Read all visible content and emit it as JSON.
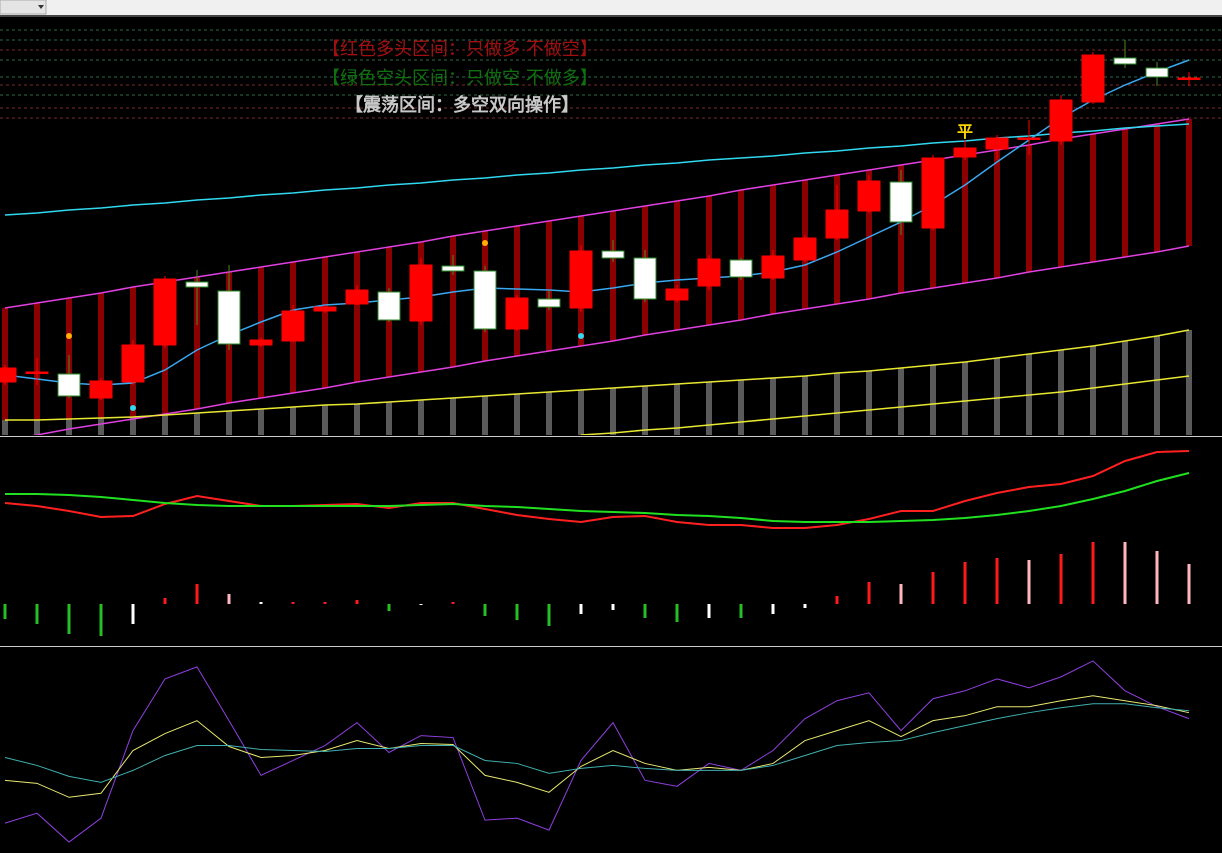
{
  "chart_data": {
    "type": "candlestick",
    "notes": [
      "【红色多头区间：只做多 不做空】",
      "【绿色空头区间：只做空 不做多】",
      "【震荡区间：多空双向操作】"
    ],
    "note_colors": [
      "#a01010",
      "#107010",
      "#c8c8c8"
    ],
    "ylim": [
      0,
      417
    ],
    "up_color": "#ff0000",
    "down_color": "#ffffff",
    "candles": [
      {
        "open": 53,
        "high": 70,
        "low": 50,
        "close": 67
      },
      {
        "open": 63,
        "high": 77,
        "low": 50,
        "close": 63
      },
      {
        "open": 61,
        "high": 80,
        "low": 37,
        "close": 39
      },
      {
        "open": 37,
        "high": 57,
        "low": 35,
        "close": 54
      },
      {
        "open": 53,
        "high": 95,
        "low": 50,
        "close": 90
      },
      {
        "open": 90,
        "high": 159,
        "low": 87,
        "close": 156
      },
      {
        "open": 153,
        "high": 165,
        "low": 110,
        "close": 148
      },
      {
        "open": 144,
        "high": 170,
        "low": 85,
        "close": 91
      },
      {
        "open": 90,
        "high": 97,
        "low": 88,
        "close": 95
      },
      {
        "open": 94,
        "high": 130,
        "low": 93,
        "close": 124
      },
      {
        "open": 124,
        "high": 130,
        "low": 122,
        "close": 128
      },
      {
        "open": 131,
        "high": 150,
        "low": 130,
        "close": 145
      },
      {
        "open": 143,
        "high": 147,
        "low": 113,
        "close": 115
      },
      {
        "open": 114,
        "high": 177,
        "low": 110,
        "close": 170
      },
      {
        "open": 169,
        "high": 180,
        "low": 160,
        "close": 164
      },
      {
        "open": 164,
        "high": 169,
        "low": 103,
        "close": 106
      },
      {
        "open": 106,
        "high": 140,
        "low": 104,
        "close": 137
      },
      {
        "open": 136,
        "high": 145,
        "low": 125,
        "close": 128
      },
      {
        "open": 127,
        "high": 190,
        "low": 123,
        "close": 184
      },
      {
        "open": 184,
        "high": 195,
        "low": 173,
        "close": 177
      },
      {
        "open": 177,
        "high": 185,
        "low": 133,
        "close": 136
      },
      {
        "open": 135,
        "high": 150,
        "low": 133,
        "close": 146
      },
      {
        "open": 149,
        "high": 180,
        "low": 145,
        "close": 176
      },
      {
        "open": 175,
        "high": 177,
        "low": 155,
        "close": 158
      },
      {
        "open": 157,
        "high": 185,
        "low": 155,
        "close": 179
      },
      {
        "open": 175,
        "high": 200,
        "low": 173,
        "close": 197
      },
      {
        "open": 197,
        "high": 250,
        "low": 195,
        "close": 225
      },
      {
        "open": 224,
        "high": 260,
        "low": 222,
        "close": 254
      },
      {
        "open": 253,
        "high": 265,
        "low": 200,
        "close": 213
      },
      {
        "open": 207,
        "high": 280,
        "low": 205,
        "close": 277
      },
      {
        "open": 278,
        "high": 295,
        "low": 275,
        "close": 287
      },
      {
        "open": 286,
        "high": 300,
        "low": 275,
        "close": 297
      },
      {
        "open": 297,
        "high": 315,
        "low": 280,
        "close": 297
      },
      {
        "open": 294,
        "high": 340,
        "low": 290,
        "close": 335
      },
      {
        "open": 333,
        "high": 383,
        "low": 331,
        "close": 380
      },
      {
        "open": 377,
        "high": 395,
        "low": 367,
        "close": 371
      },
      {
        "open": 367,
        "high": 373,
        "low": 349,
        "close": 358
      },
      {
        "open": 357,
        "high": 363,
        "low": 349,
        "close": 357
      }
    ],
    "levels": [
      {
        "value": 405,
        "color": "#2a6a4a"
      },
      {
        "value": 395,
        "color": "#2a6a4a"
      },
      {
        "value": 385,
        "color": "#7a2a2a"
      },
      {
        "value": 375,
        "color": "#2a6a4a"
      },
      {
        "value": 358,
        "color": "#2a6a4a"
      },
      {
        "value": 350,
        "color": "#7a2a2a"
      },
      {
        "value": 340,
        "color": "#2a6a4a"
      },
      {
        "value": 327,
        "color": "#7a2a2a"
      },
      {
        "value": 317,
        "color": "#7a2a2a"
      }
    ],
    "band_color": "#8b0000",
    "base_bars": {
      "color": "#5a5a5a",
      "values": [
        15,
        15,
        16,
        17,
        18,
        20,
        22,
        24,
        26,
        28,
        30,
        31,
        33,
        35,
        37,
        39,
        41,
        43,
        45,
        47,
        49,
        51,
        53,
        55,
        57,
        59,
        62,
        64,
        67,
        70,
        73,
        77,
        81,
        85,
        89,
        94,
        99,
        105
      ]
    },
    "overlays": [
      {
        "color": "#e040e0",
        "values": [
          127,
          132,
          137,
          142,
          148,
          153,
          158,
          163,
          168,
          173,
          178,
          183,
          188,
          193,
          199,
          204,
          209,
          214,
          219,
          224,
          229,
          234,
          239,
          245,
          250,
          255,
          260,
          265,
          270,
          275,
          280,
          285,
          290,
          296,
          301,
          306,
          311,
          316
        ]
      },
      {
        "color": "#e040e0",
        "values": [
          -5,
          0,
          6,
          11,
          16,
          21,
          26,
          32,
          37,
          42,
          47,
          53,
          58,
          63,
          68,
          74,
          79,
          84,
          89,
          94,
          100,
          105,
          110,
          115,
          121,
          126,
          131,
          136,
          142,
          147,
          152,
          157,
          163,
          168,
          173,
          178,
          183,
          189
        ]
      },
      {
        "color": "#30d8f0",
        "values": [
          220,
          222,
          225,
          227,
          230,
          232,
          235,
          237,
          240,
          242,
          245,
          247,
          250,
          252,
          255,
          257,
          260,
          262,
          265,
          267,
          270,
          272,
          275,
          277,
          279,
          282,
          284,
          287,
          289,
          292,
          294,
          297,
          299,
          302,
          304,
          307,
          309,
          311
        ]
      },
      {
        "color": "#e8e830",
        "values": [
          15,
          15,
          16,
          17,
          18,
          20,
          22,
          24,
          26,
          28,
          30,
          31,
          33,
          35,
          37,
          39,
          41,
          43,
          45,
          47,
          49,
          51,
          53,
          55,
          57,
          59,
          62,
          64,
          67,
          70,
          73,
          77,
          81,
          85,
          89,
          94,
          99,
          105
        ]
      },
      {
        "color": "#e8e830",
        "values": [
          null,
          null,
          null,
          null,
          null,
          null,
          null,
          null,
          null,
          null,
          null,
          null,
          null,
          null,
          null,
          null,
          null,
          null,
          0,
          2,
          5,
          7,
          10,
          13,
          16,
          19,
          22,
          25,
          28,
          31,
          34,
          37,
          40,
          43,
          47,
          51,
          55,
          59
        ]
      },
      {
        "color": "#3aa8f0",
        "values": [
          60,
          56,
          52,
          50,
          52,
          65,
          85,
          100,
          113,
          125,
          130,
          132,
          135,
          138,
          143,
          147,
          146,
          145,
          143,
          147,
          152,
          155,
          157,
          159,
          163,
          170,
          183,
          198,
          213,
          230,
          250,
          273,
          295,
          317,
          335,
          350,
          363,
          375
        ]
      }
    ],
    "markers": [
      {
        "index": 2,
        "value": 99,
        "color": "#ffb000"
      },
      {
        "index": 15,
        "value": 192,
        "color": "#ffb000"
      },
      {
        "index": 4,
        "value": 27,
        "color": "#30d8f0"
      },
      {
        "index": 18,
        "value": 99,
        "color": "#30d8f0"
      }
    ],
    "annotations": [
      {
        "text": "平",
        "index": 30,
        "value": 298,
        "color": "#ffd700"
      }
    ],
    "panel2": {
      "ylim": [
        -42,
        166
      ],
      "histogram": [
        -15,
        -20,
        -30,
        -32,
        -20,
        6,
        20,
        10,
        2,
        2,
        2,
        4,
        -7,
        -1,
        2,
        -12,
        -16,
        -22,
        -10,
        -6,
        -14,
        -18,
        -14,
        -14,
        -10,
        -4,
        8,
        22,
        20,
        32,
        42,
        46,
        44,
        50,
        62,
        62,
        53,
        40
      ],
      "histogram_colors": [
        "#22c022",
        "#22c022",
        "#22c022",
        "#22c022",
        "#ffffff",
        "#ff1a1a",
        "#ff1a1a",
        "#ffb6c1",
        "#ffffff",
        "#ff1a1a",
        "#ff1a1a",
        "#ff1a1a",
        "#22c022",
        "#ffffff",
        "#ff1a1a",
        "#22c022",
        "#22c022",
        "#22c022",
        "#ffffff",
        "#ffffff",
        "#22c022",
        "#22c022",
        "#ffffff",
        "#22c022",
        "#ffffff",
        "#ffffff",
        "#ff1a1a",
        "#ff1a1a",
        "#ffb6c1",
        "#ff1a1a",
        "#ff1a1a",
        "#ff1a1a",
        "#ffb6c1",
        "#ff1a1a",
        "#ff1a1a",
        "#ffb6c1",
        "#ffb6c1",
        "#ffb6c1"
      ],
      "lines": [
        {
          "color": "#ff2020",
          "values": [
            101,
            98,
            93,
            87,
            88,
            100,
            108,
            103,
            98,
            98,
            99,
            100,
            96,
            101,
            101,
            95,
            89,
            85,
            82,
            87,
            88,
            82,
            79,
            79,
            76,
            76,
            79,
            85,
            93,
            93,
            103,
            111,
            117,
            120,
            128,
            143,
            152,
            153
          ]
        },
        {
          "color": "#20e020",
          "values": [
            110,
            110,
            109,
            107,
            104,
            101,
            99,
            98,
            98,
            98,
            98,
            98,
            98,
            99,
            100,
            98,
            97,
            95,
            93,
            92,
            91,
            89,
            88,
            86,
            83,
            82,
            82,
            82,
            83,
            84,
            86,
            89,
            93,
            98,
            105,
            113,
            123,
            131
          ]
        }
      ]
    },
    "panel3": {
      "ylim": [
        0,
        206
      ],
      "lines": [
        {
          "color": "#9040e0",
          "values": [
            30,
            40,
            11,
            35,
            123,
            175,
            187,
            133,
            78,
            93,
            108,
            131,
            101,
            118,
            116,
            33,
            35,
            23,
            93,
            131,
            73,
            67,
            90,
            83,
            103,
            135,
            153,
            161,
            123,
            155,
            163,
            175,
            166,
            177,
            193,
            163,
            147,
            135
          ]
        },
        {
          "color": "#e8e870",
          "values": [
            73,
            70,
            56,
            60,
            103,
            120,
            133,
            107,
            96,
            98,
            103,
            113,
            105,
            110,
            109,
            78,
            71,
            61,
            87,
            103,
            90,
            83,
            86,
            83,
            90,
            113,
            123,
            133,
            117,
            133,
            138,
            147,
            147,
            153,
            158,
            153,
            148,
            141
          ]
        },
        {
          "color": "#40b0b0",
          "values": [
            96,
            88,
            77,
            71,
            83,
            98,
            108,
            108,
            104,
            103,
            102,
            105,
            105,
            108,
            108,
            93,
            90,
            80,
            85,
            88,
            85,
            83,
            83,
            83,
            88,
            98,
            108,
            111,
            113,
            121,
            128,
            135,
            141,
            146,
            150,
            150,
            146,
            143
          ]
        }
      ]
    }
  }
}
